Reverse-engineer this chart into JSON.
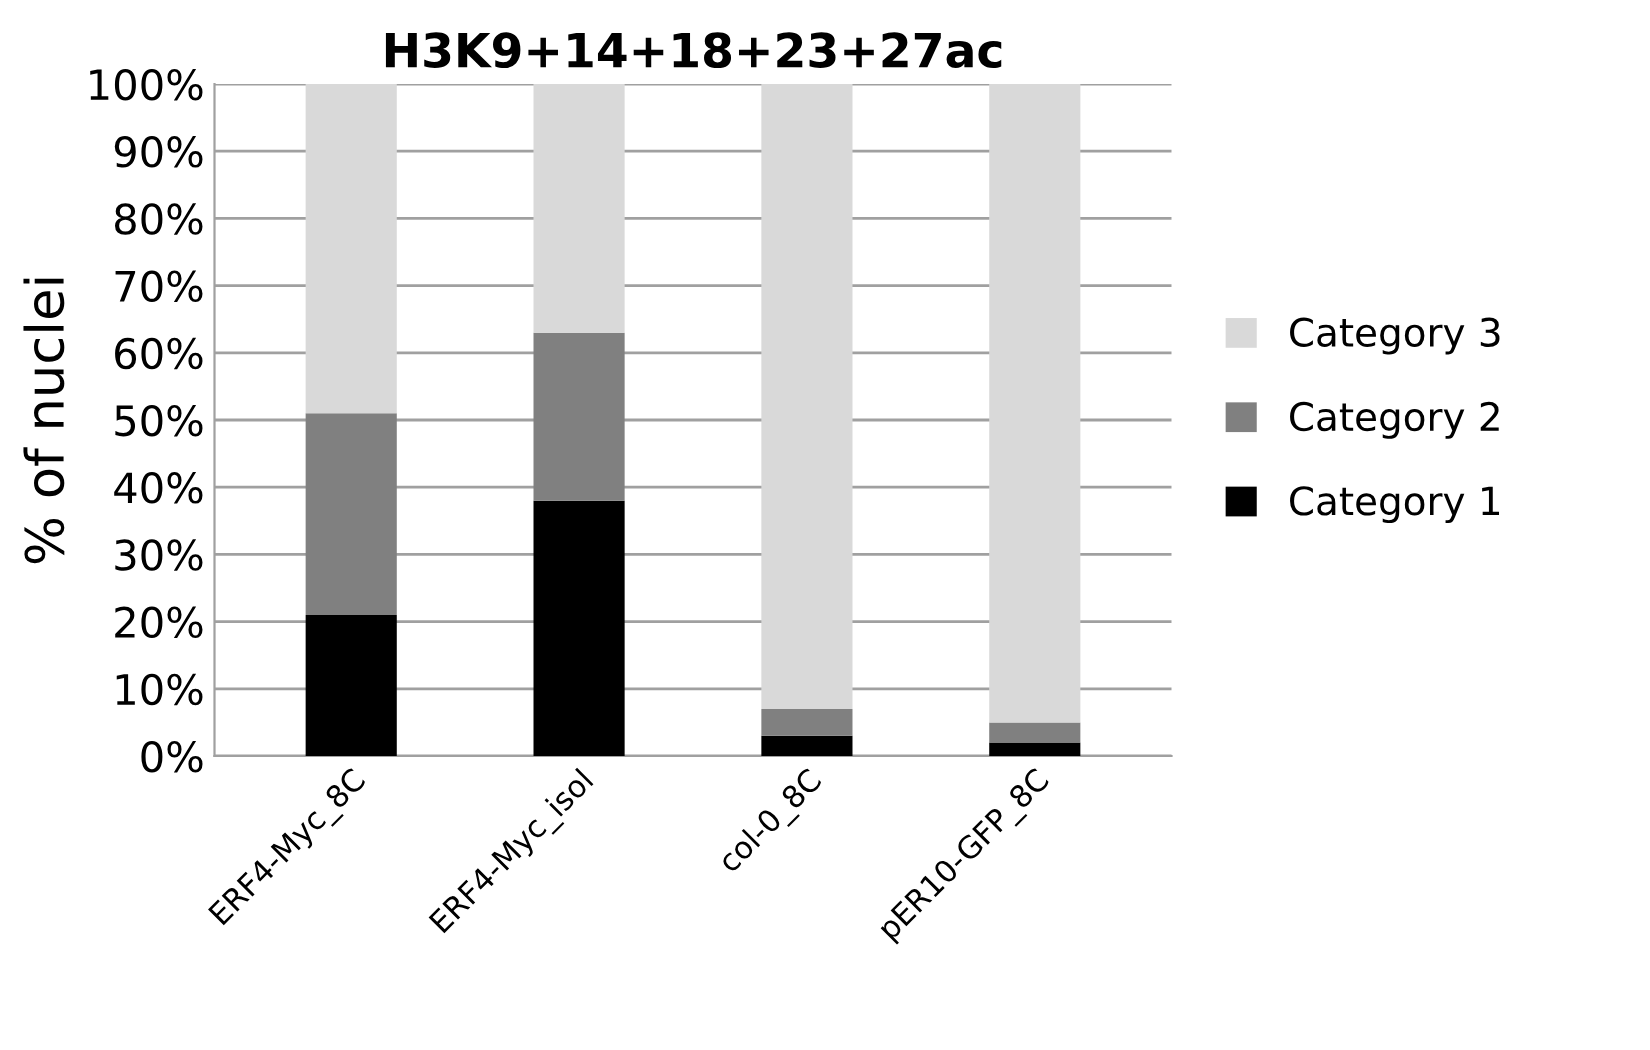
{
  "chart_data": {
    "type": "bar",
    "title": "H3K9+14+18+23+27ac",
    "ylabel": "% of nuclei",
    "categories": [
      "ERF4-Myc_8C",
      "ERF4-Myc_isol",
      "col-0_8C",
      "pER10-GFP_8C"
    ],
    "stacked": true,
    "series": [
      {
        "name": "Category 1",
        "color": "#000000",
        "values": [
          21,
          38,
          3,
          2
        ]
      },
      {
        "name": "Category 2",
        "color": "#808080",
        "values": [
          30,
          25,
          4,
          3
        ]
      },
      {
        "name": "Category 3",
        "color": "#d9d9d9",
        "values": [
          49,
          37,
          93,
          95
        ]
      }
    ],
    "ylim": [
      0,
      100
    ],
    "yticks": [
      {
        "value": 0,
        "label": "0%"
      },
      {
        "value": 10,
        "label": "10%"
      },
      {
        "value": 20,
        "label": "20%"
      },
      {
        "value": 30,
        "label": "30%"
      },
      {
        "value": 40,
        "label": "40%"
      },
      {
        "value": 50,
        "label": "50%"
      },
      {
        "value": 60,
        "label": "60%"
      },
      {
        "value": 70,
        "label": "70%"
      },
      {
        "value": 80,
        "label": "80%"
      },
      {
        "value": 90,
        "label": "90%"
      },
      {
        "value": 100,
        "label": "100%"
      }
    ],
    "grid": "y",
    "legend": "right"
  }
}
